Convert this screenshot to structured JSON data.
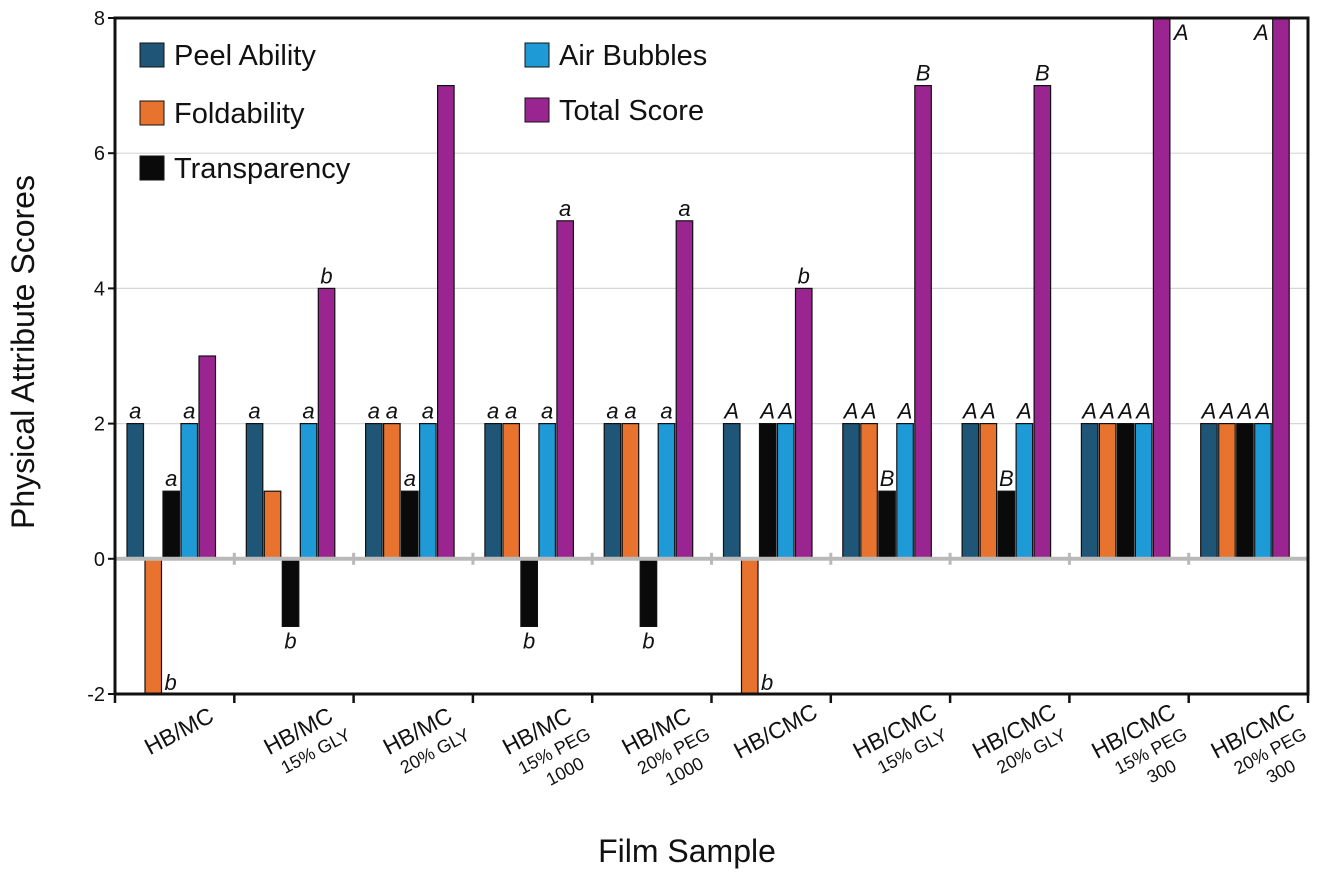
{
  "chart_data": {
    "type": "bar",
    "title": "",
    "xlabel": "Film Sample",
    "ylabel": "Physical Attribute Scores",
    "ylim": [
      -2,
      8
    ],
    "yticks": [
      "-2",
      "0",
      "2",
      "4",
      "6",
      "8"
    ],
    "grid": true,
    "legend_position": "top-left",
    "categories": [
      {
        "main": "HB/MC",
        "sub": []
      },
      {
        "main": "HB/MC",
        "sub": [
          "15% GLY"
        ]
      },
      {
        "main": "HB/MC",
        "sub": [
          "20% GLY"
        ]
      },
      {
        "main": "HB/MC",
        "sub": [
          "15% PEG",
          "1000"
        ]
      },
      {
        "main": "HB/MC",
        "sub": [
          "20% PEG",
          "1000"
        ]
      },
      {
        "main": "HB/CMC",
        "sub": []
      },
      {
        "main": "HB/CMC",
        "sub": [
          "15% GLY"
        ]
      },
      {
        "main": "HB/CMC",
        "sub": [
          "20% GLY"
        ]
      },
      {
        "main": "HB/CMC",
        "sub": [
          "15% PEG",
          "300"
        ]
      },
      {
        "main": "HB/CMC",
        "sub": [
          "20% PEG",
          "300"
        ]
      }
    ],
    "series": [
      {
        "name": "Peel Ability",
        "color": "#1f5677",
        "values": [
          2,
          2,
          2,
          2,
          2,
          2,
          2,
          2,
          2,
          2
        ],
        "labels": [
          "a",
          "a",
          "a",
          "a",
          "a",
          "A",
          "A",
          "A",
          "A",
          "A"
        ]
      },
      {
        "name": "Foldability",
        "color": "#e8732f",
        "values": [
          -2,
          1,
          2,
          2,
          2,
          -2,
          2,
          2,
          2,
          2
        ],
        "labels": [
          "b",
          "",
          "a",
          "a",
          "a",
          "b",
          "A",
          "A",
          "A",
          "A"
        ]
      },
      {
        "name": "Transparency",
        "color": "#0a0a0a",
        "values": [
          1,
          -1,
          1,
          -1,
          -1,
          2,
          1,
          1,
          2,
          2
        ],
        "labels": [
          "a",
          "b",
          "a",
          "b",
          "b",
          "A",
          "B",
          "B",
          "A",
          "A"
        ]
      },
      {
        "name": "Air Bubbles",
        "color": "#1e9ad6",
        "values": [
          2,
          2,
          2,
          2,
          2,
          2,
          2,
          2,
          2,
          2
        ],
        "labels": [
          "a",
          "a",
          "a",
          "a",
          "a",
          "A",
          "A",
          "A",
          "A",
          "A"
        ]
      },
      {
        "name": "Total Score",
        "color": "#9b2590",
        "values": [
          3,
          4,
          7,
          5,
          5,
          4,
          7,
          7,
          8,
          8
        ],
        "labels": [
          "",
          "b",
          "",
          "a",
          "a",
          "b",
          "B",
          "B",
          "A",
          "A"
        ]
      }
    ],
    "legend_columns": [
      [
        "Peel Ability",
        "Foldability",
        "Transparency"
      ],
      [
        "Air Bubbles",
        "Total Score"
      ]
    ]
  }
}
